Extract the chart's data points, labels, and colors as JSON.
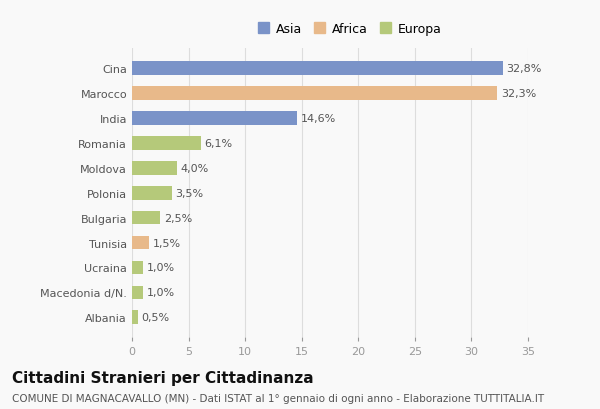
{
  "categories": [
    "Cina",
    "Marocco",
    "India",
    "Romania",
    "Moldova",
    "Polonia",
    "Bulgaria",
    "Tunisia",
    "Ucraina",
    "Macedonia d/N.",
    "Albania"
  ],
  "values": [
    32.8,
    32.3,
    14.6,
    6.1,
    4.0,
    3.5,
    2.5,
    1.5,
    1.0,
    1.0,
    0.5
  ],
  "labels": [
    "32,8%",
    "32,3%",
    "14,6%",
    "6,1%",
    "4,0%",
    "3,5%",
    "2,5%",
    "1,5%",
    "1,0%",
    "1,0%",
    "0,5%"
  ],
  "colors": [
    "#7a93c8",
    "#e8b98a",
    "#7a93c8",
    "#b5c97a",
    "#b5c97a",
    "#b5c97a",
    "#b5c97a",
    "#e8b98a",
    "#b5c97a",
    "#b5c97a",
    "#b5c97a"
  ],
  "legend_labels": [
    "Asia",
    "Africa",
    "Europa"
  ],
  "legend_colors": [
    "#7a93c8",
    "#e8b98a",
    "#b5c97a"
  ],
  "title": "Cittadini Stranieri per Cittadinanza",
  "subtitle": "COMUNE DI MAGNACAVALLO (MN) - Dati ISTAT al 1° gennaio di ogni anno - Elaborazione TUTTITALIA.IT",
  "xlim": [
    0,
    35
  ],
  "xticks": [
    0,
    5,
    10,
    15,
    20,
    25,
    30,
    35
  ],
  "background_color": "#f9f9f9",
  "grid_color": "#dddddd",
  "bar_height": 0.55,
  "title_fontsize": 11,
  "subtitle_fontsize": 7.5,
  "tick_fontsize": 8,
  "label_fontsize": 8,
  "legend_fontsize": 9
}
